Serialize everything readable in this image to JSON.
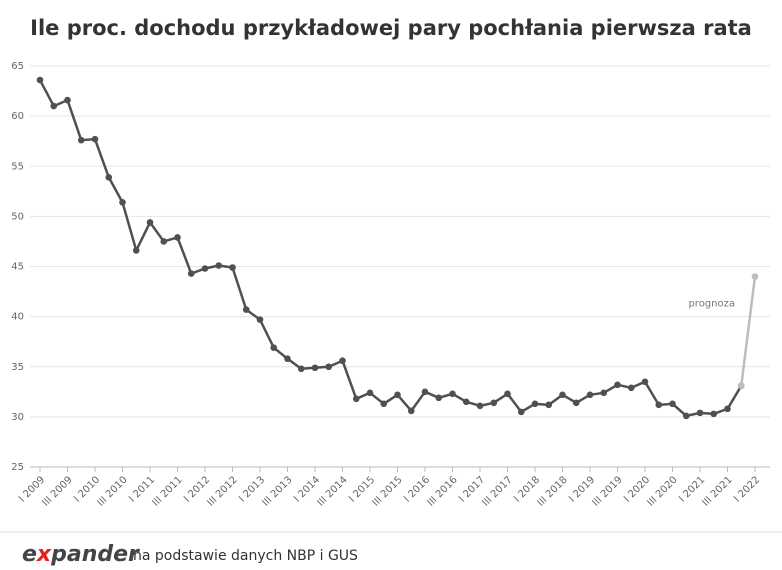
{
  "chart_data": {
    "type": "line",
    "title": "Ile proc. dochodu przykładowej pary pochłania pierwsza rata",
    "categories": [
      "I 2009",
      null,
      "III 2009",
      null,
      "I 2010",
      null,
      "III 2010",
      null,
      "I 2011",
      null,
      "III 2011",
      null,
      "I 2012",
      null,
      "III 2012",
      null,
      "I 2013",
      null,
      "III 2013",
      null,
      "I 2014",
      null,
      "III 2014",
      null,
      "I 2015",
      null,
      "III 2015",
      null,
      "I 2016",
      null,
      "III 2016",
      null,
      "I 2017",
      null,
      "III 2017",
      null,
      "I 2018",
      null,
      "III 2018",
      null,
      "I 2019",
      null,
      "III 2019",
      null,
      "I 2020",
      null,
      "III 2020",
      null,
      "I 2021",
      null,
      "III 2021",
      null,
      "I 2022"
    ],
    "series": [
      {
        "color": "#505050",
        "values": [
          63.6,
          61.0,
          61.6,
          57.6,
          57.7,
          53.9,
          51.4,
          46.6,
          49.4,
          47.5,
          47.9,
          44.3,
          44.8,
          45.1,
          44.9,
          40.7,
          39.7,
          36.9,
          35.8,
          34.8,
          34.9,
          35.0,
          35.6,
          31.8,
          32.4,
          31.3,
          32.2,
          30.6,
          32.5,
          31.9,
          32.3,
          31.5,
          31.1,
          31.4,
          32.3,
          30.5,
          31.3,
          31.2,
          32.2,
          31.4,
          32.2,
          32.4,
          33.2,
          32.9,
          33.5,
          31.2,
          31.3,
          30.1,
          30.4,
          30.3,
          30.8,
          33.1,
          null
        ]
      },
      {
        "name": "prognoza",
        "color": "#bdbdbd",
        "values": [
          null,
          null,
          null,
          null,
          null,
          null,
          null,
          null,
          null,
          null,
          null,
          null,
          null,
          null,
          null,
          null,
          null,
          null,
          null,
          null,
          null,
          null,
          null,
          null,
          null,
          null,
          null,
          null,
          null,
          null,
          null,
          null,
          null,
          null,
          null,
          null,
          null,
          null,
          null,
          null,
          null,
          null,
          null,
          null,
          null,
          null,
          null,
          null,
          null,
          null,
          null,
          33.1,
          44.0
        ]
      }
    ],
    "ylim": [
      25,
      65
    ],
    "yticks": [
      25,
      30,
      35,
      40,
      45,
      50,
      55,
      60,
      65
    ],
    "grid": true
  },
  "footer": {
    "logo": [
      "e",
      "x",
      "pander"
    ],
    "source": "na podstawie danych NBP i GUS"
  }
}
